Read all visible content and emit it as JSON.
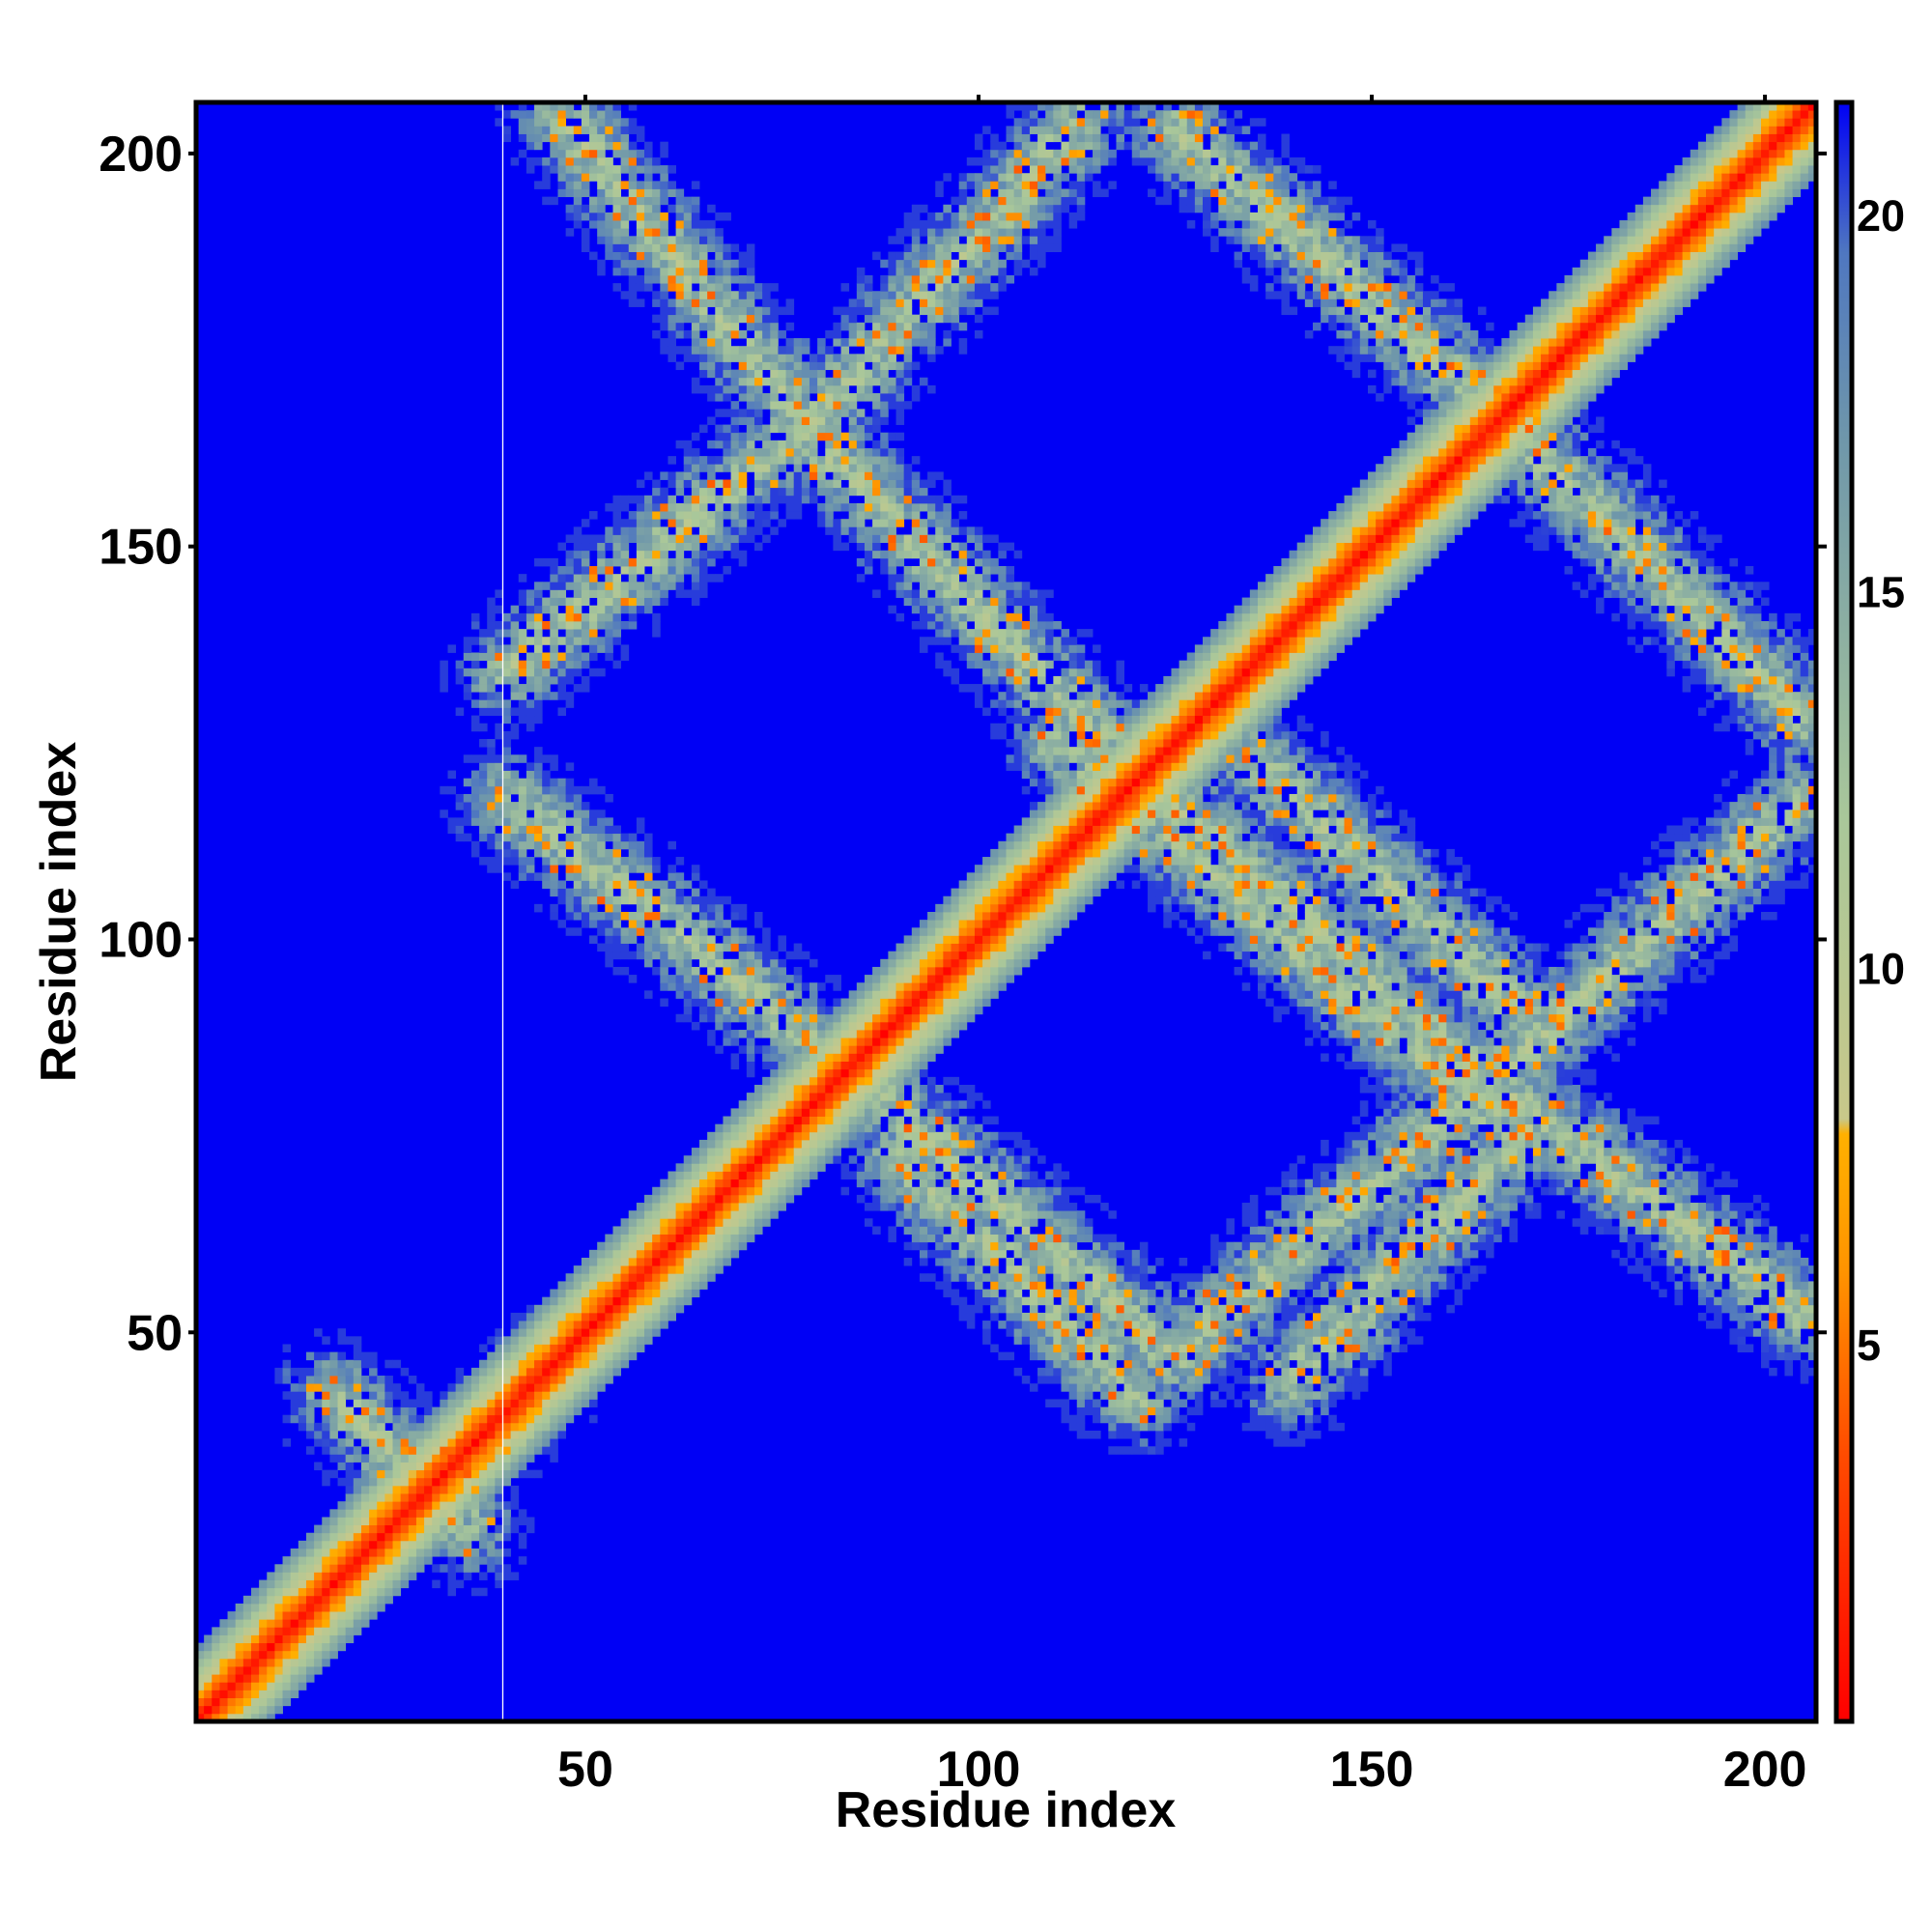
{
  "chart_data": {
    "type": "heatmap",
    "title": "",
    "xlabel": "Residue index",
    "ylabel": "Residue index",
    "xlim": [
      1,
      206
    ],
    "ylim": [
      1,
      206
    ],
    "x_ticks": [
      50,
      100,
      150,
      200
    ],
    "y_ticks": [
      50,
      100,
      150,
      200
    ],
    "colorbar": {
      "range": [
        0,
        21.5
      ],
      "ticks": [
        5,
        10,
        15,
        20
      ],
      "stops": [
        {
          "value": 0,
          "color": "#ff0000"
        },
        {
          "value": 3.5,
          "color": "#ff4a00"
        },
        {
          "value": 6,
          "color": "#ff9400"
        },
        {
          "value": 7.8,
          "color": "#ffb000"
        },
        {
          "value": 8.0,
          "color": "#c8c88a"
        },
        {
          "value": 12,
          "color": "#a9c79a"
        },
        {
          "value": 17,
          "color": "#6f97aa"
        },
        {
          "value": 19.5,
          "color": "#4f77c0"
        },
        {
          "value": 21.5,
          "color": "#0000f5"
        }
      ]
    },
    "background_value": 21.5,
    "background_color": "#0000f5",
    "band_half_width": 7,
    "diagonal": {
      "from": [
        1,
        1
      ],
      "to": [
        206,
        206
      ]
    },
    "contact_bands": [
      {
        "name": "a",
        "from": [
          47,
          205
        ],
        "to": [
          80,
          163
        ]
      },
      {
        "name": "b",
        "from": [
          80,
          163
        ],
        "to": [
          118,
          123
        ]
      },
      {
        "name": "c",
        "from": [
          40,
          134
        ],
        "to": [
          80,
          167
        ]
      },
      {
        "name": "d",
        "from": [
          80,
          167
        ],
        "to": [
          113,
          204
        ]
      },
      {
        "name": "e",
        "from": [
          40,
          118
        ],
        "to": [
          85,
          82
        ]
      },
      {
        "name": "f",
        "from": [
          85,
          82
        ],
        "to": [
          125,
          47
        ]
      },
      {
        "name": "g",
        "from": [
          125,
          47
        ],
        "to": [
          165,
          82
        ]
      },
      {
        "name": "h",
        "from": [
          165,
          82
        ],
        "to": [
          205,
          118
        ]
      },
      {
        "name": "i",
        "from": [
          90,
          72
        ],
        "to": [
          120,
          42
        ]
      },
      {
        "name": "j",
        "from": [
          140,
          44
        ],
        "to": [
          170,
          76
        ]
      },
      {
        "name": "k",
        "from": [
          118,
          123
        ],
        "to": [
          160,
          86
        ]
      },
      {
        "name": "l",
        "from": [
          160,
          86
        ],
        "to": [
          205,
          52
        ]
      },
      {
        "name": "m",
        "from": [
          125,
          203
        ],
        "to": [
          165,
          168
        ]
      },
      {
        "name": "n",
        "from": [
          165,
          168
        ],
        "to": [
          205,
          128
        ]
      },
      {
        "name": "o",
        "from": [
          110,
          125
        ],
        "to": [
          165,
          78
        ]
      },
      {
        "name": "p",
        "from": [
          135,
          123
        ],
        "to": [
          172,
          88
        ]
      },
      {
        "name": "q",
        "from": [
          18,
          42
        ],
        "to": [
          35,
          25
        ]
      },
      {
        "name": "r",
        "from": [
          30,
          28
        ],
        "to": [
          45,
          45
        ]
      }
    ],
    "gap_line_x": 39.5,
    "gap_line_color": "#ffffff"
  }
}
